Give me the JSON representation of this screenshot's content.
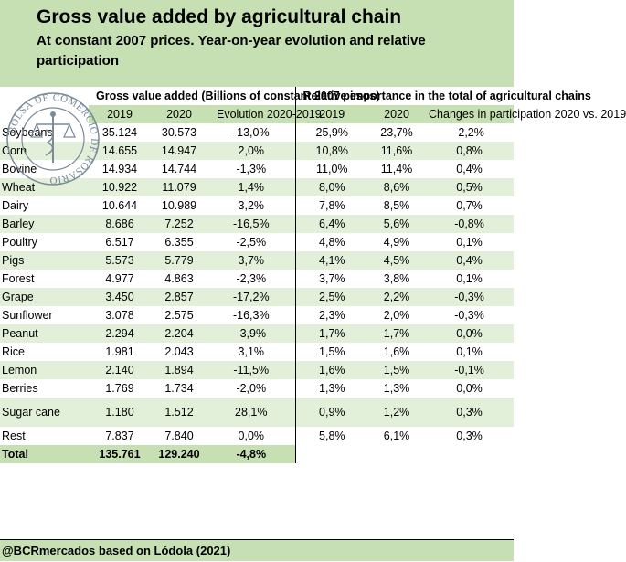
{
  "header": {
    "title": "Gross value added by agricultural chain",
    "subtitle": "At constant 2007 prices. Year-on-year evolution and relative participation"
  },
  "logo": {
    "text": "BOLSA DE COMERCIO DE ROSARIO"
  },
  "columns": {
    "gva_group": "Gross value added (Billions of constant 2007 pesos)",
    "rel_group": "Relative importance in the total of agricultural chains",
    "y2019": "2019",
    "y2020": "2020",
    "evolution": "Evolution 2020-2019",
    "r2019": "2019",
    "r2020": "2020",
    "changes": "Changes in participation 2020 vs. 2019"
  },
  "rows": [
    {
      "name": "Soybeans",
      "v2019": "35.124",
      "v2020": "30.573",
      "evo": "-13,0%",
      "r2019": "25,9%",
      "r2020": "23,7%",
      "chg": "-2,2%"
    },
    {
      "name": "Corn",
      "v2019": "14.655",
      "v2020": "14.947",
      "evo": "2,0%",
      "r2019": "10,8%",
      "r2020": "11,6%",
      "chg": "0,8%"
    },
    {
      "name": "Bovine",
      "v2019": "14.934",
      "v2020": "14.744",
      "evo": "-1,3%",
      "r2019": "11,0%",
      "r2020": "11,4%",
      "chg": "0,4%"
    },
    {
      "name": "Wheat",
      "v2019": "10.922",
      "v2020": "11.079",
      "evo": "1,4%",
      "r2019": "8,0%",
      "r2020": "8,6%",
      "chg": "0,5%"
    },
    {
      "name": "Dairy",
      "v2019": "10.644",
      "v2020": "10.989",
      "evo": "3,2%",
      "r2019": "7,8%",
      "r2020": "8,5%",
      "chg": "0,7%"
    },
    {
      "name": "Barley",
      "v2019": "8.686",
      "v2020": "7.252",
      "evo": "-16,5%",
      "r2019": "6,4%",
      "r2020": "5,6%",
      "chg": "-0,8%"
    },
    {
      "name": "Poultry",
      "v2019": "6.517",
      "v2020": "6.355",
      "evo": "-2,5%",
      "r2019": "4,8%",
      "r2020": "4,9%",
      "chg": "0,1%"
    },
    {
      "name": "Pigs",
      "v2019": "5.573",
      "v2020": "5.779",
      "evo": "3,7%",
      "r2019": "4,1%",
      "r2020": "4,5%",
      "chg": "0,4%"
    },
    {
      "name": "Forest",
      "v2019": "4.977",
      "v2020": "4.863",
      "evo": "-2,3%",
      "r2019": "3,7%",
      "r2020": "3,8%",
      "chg": "0,1%"
    },
    {
      "name": "Grape",
      "v2019": "3.450",
      "v2020": "2.857",
      "evo": "-17,2%",
      "r2019": "2,5%",
      "r2020": "2,2%",
      "chg": "-0,3%"
    },
    {
      "name": "Sunflower",
      "v2019": "3.078",
      "v2020": "2.575",
      "evo": "-16,3%",
      "r2019": "2,3%",
      "r2020": "2,0%",
      "chg": "-0,3%"
    },
    {
      "name": "Peanut",
      "v2019": "2.294",
      "v2020": "2.204",
      "evo": "-3,9%",
      "r2019": "1,7%",
      "r2020": "1,7%",
      "chg": "0,0%"
    },
    {
      "name": "Rice",
      "v2019": "1.981",
      "v2020": "2.043",
      "evo": "3,1%",
      "r2019": "1,5%",
      "r2020": "1,6%",
      "chg": "0,1%"
    },
    {
      "name": "Lemon",
      "v2019": "2.140",
      "v2020": "1.894",
      "evo": "-11,5%",
      "r2019": "1,6%",
      "r2020": "1,5%",
      "chg": "-0,1%"
    },
    {
      "name": "Berries",
      "v2019": "1.769",
      "v2020": "1.734",
      "evo": "-2,0%",
      "r2019": "1,3%",
      "r2020": "1,3%",
      "chg": "0,0%"
    },
    {
      "name": "Sugar cane",
      "v2019": "1.180",
      "v2020": "1.512",
      "evo": "28,1%",
      "r2019": "0,9%",
      "r2020": "1,2%",
      "chg": "0,3%"
    },
    {
      "name": "Rest",
      "v2019": "7.837",
      "v2020": "7.840",
      "evo": "0,0%",
      "r2019": "5,8%",
      "r2020": "6,1%",
      "chg": "0,3%"
    }
  ],
  "total": {
    "name": "Total",
    "v2019": "135.761",
    "v2020": "129.240",
    "evo": "-4,8%"
  },
  "footer": {
    "source": "@BCRmercados based on Lódola (2021)"
  },
  "colors": {
    "header_green": "#c6e0b4",
    "row_green": "#e2efd9",
    "white": "#ffffff"
  }
}
